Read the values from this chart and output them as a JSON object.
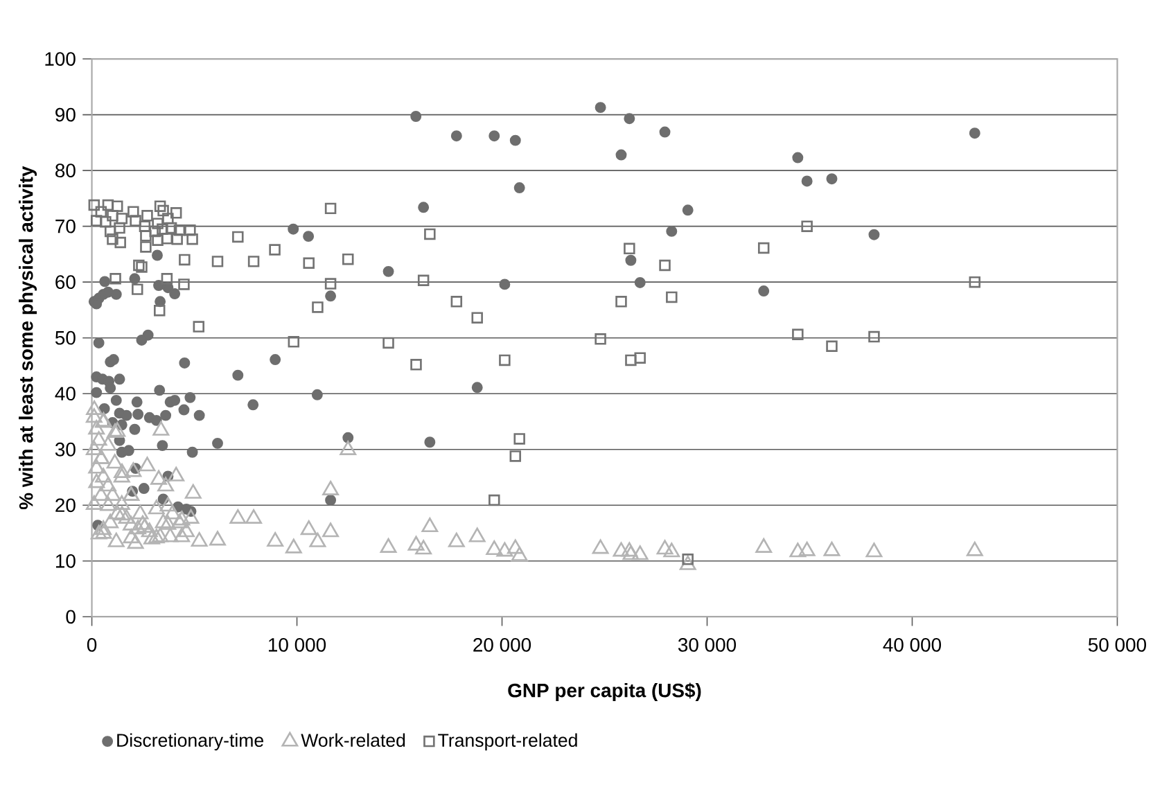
{
  "chart_data": {
    "type": "scatter",
    "xlabel": "GNP per capita (US$)",
    "ylabel": "% with at least some physical activity",
    "xlim": [
      0,
      50000
    ],
    "ylim": [
      0,
      100
    ],
    "xticks": [
      0,
      {
        "value": 10000,
        "label": "10 000"
      },
      {
        "value": 20000,
        "label": "20 000"
      },
      {
        "value": 30000,
        "label": "30 000"
      },
      {
        "value": 40000,
        "label": "40 000"
      },
      {
        "value": 50000,
        "label": "50 000"
      }
    ],
    "yticks": [
      0,
      10,
      20,
      30,
      40,
      50,
      60,
      70,
      80,
      90,
      100
    ],
    "grid": "y",
    "legend": "bottom",
    "series": [
      {
        "name": "Discretionary-time",
        "color": "#6e6e6e",
        "marker": "circle",
        "x": [
          15800,
          17780,
          19620,
          20650,
          20850,
          16170,
          24800,
          26210,
          27940,
          25810,
          29060,
          28270,
          26280,
          26730,
          20130,
          14460,
          18790,
          12490,
          16480,
          11640,
          11640,
          43050,
          34420,
          34870,
          36080,
          38140,
          32760,
          9820,
          10560,
          3190,
          2090,
          3260,
          3710,
          4040,
          630,
          1190,
          110,
          340,
          560,
          790,
          225,
          3330,
          340,
          2430,
          2740,
          900,
          1060,
          225,
          520,
          830,
          1350,
          900,
          225,
          4520,
          8940,
          7120,
          10990,
          7860,
          3300,
          3820,
          4040,
          4790,
          1190,
          2200,
          610,
          1350,
          1690,
          2250,
          2810,
          3150,
          3600,
          4490,
          5240,
          1010,
          1460,
          2090,
          6130,
          3440,
          4900,
          1350,
          1460,
          1800,
          2130,
          3710,
          1980,
          2540,
          3480,
          4200,
          4610,
          4830,
          290
        ],
        "values": [
          89.7,
          86.2,
          86.2,
          85.4,
          76.9,
          73.4,
          91.3,
          89.3,
          86.9,
          82.8,
          72.9,
          69.1,
          63.9,
          59.9,
          59.6,
          61.9,
          41.1,
          32.1,
          31.3,
          57.5,
          20.9,
          86.7,
          82.3,
          78.1,
          78.5,
          68.5,
          58.4,
          69.5,
          68.2,
          64.8,
          60.6,
          59.4,
          59.0,
          57.9,
          60.1,
          57.8,
          56.5,
          57.1,
          57.8,
          58.2,
          56.1,
          56.5,
          49.1,
          49.6,
          50.5,
          45.7,
          46.1,
          43.0,
          42.6,
          42.2,
          42.6,
          41.0,
          40.2,
          45.5,
          46.1,
          43.3,
          39.8,
          38.0,
          40.6,
          38.5,
          38.8,
          39.3,
          38.8,
          38.5,
          37.3,
          36.5,
          36.1,
          36.3,
          35.7,
          35.2,
          36.1,
          37.1,
          36.1,
          34.8,
          34.4,
          33.6,
          31.1,
          30.7,
          29.5,
          31.6,
          29.5,
          29.8,
          26.6,
          25.2,
          22.5,
          23.0,
          21.1,
          19.7,
          19.3,
          18.9,
          16.4
        ]
      },
      {
        "name": "Work-related",
        "color": "#b4b4b4",
        "marker": "triangle",
        "x": [
          12490,
          11640,
          11640,
          14460,
          15810,
          16170,
          16480,
          17780,
          18790,
          19620,
          20130,
          20650,
          20850,
          24800,
          25810,
          26210,
          26280,
          26730,
          27940,
          28270,
          29060,
          32760,
          34420,
          34870,
          36080,
          38140,
          43050,
          3370,
          2700,
          4110,
          4940,
          2020,
          3260,
          3600,
          7120,
          7890,
          8940,
          9840,
          10580,
          11010,
          6130,
          5240,
          4830,
          4610,
          4380,
          3820,
          3330,
          2920,
          2130,
          1190,
          340,
          110,
          110,
          225,
          340,
          110,
          450,
          225,
          560,
          790,
          1010,
          450,
          1460,
          1240,
          1690,
          1910,
          900,
          560,
          2360,
          2580,
          2810,
          3480,
          3930,
          4270,
          3150,
          1910,
          1460,
          1120,
          790,
          560,
          1240,
          120,
          570,
          1130,
          460,
          1470,
          1920,
          2480,
          3710,
          4390,
          3150,
          1920,
          570,
          230,
          800,
          1470,
          2250,
          3710
        ],
        "values": [
          29.9,
          22.7,
          15.2,
          12.4,
          12.8,
          12.1,
          16.1,
          13.4,
          14.3,
          12.0,
          11.7,
          12.2,
          10.9,
          12.2,
          11.7,
          11.7,
          11.1,
          11.1,
          12.1,
          11.6,
          9.3,
          12.4,
          11.6,
          11.8,
          11.8,
          11.6,
          11.8,
          33.4,
          27.0,
          25.2,
          22.1,
          26.0,
          24.6,
          23.4,
          17.6,
          17.6,
          13.5,
          12.3,
          15.6,
          13.4,
          13.7,
          13.5,
          17.6,
          15.2,
          14.3,
          14.3,
          14.3,
          13.9,
          13.1,
          13.4,
          14.8,
          20.1,
          35.7,
          33.6,
          31.6,
          29.9,
          28.3,
          26.6,
          25.0,
          23.4,
          21.7,
          21.7,
          20.1,
          18.4,
          17.6,
          16.4,
          16.8,
          15.6,
          18.4,
          16.0,
          15.2,
          16.8,
          18.4,
          16.8,
          19.3,
          21.7,
          25.0,
          27.5,
          30.7,
          34.8,
          33.2,
          37.1,
          35.0,
          33.0,
          28.3,
          25.8,
          21.7,
          16.5,
          16.5,
          17.3,
          14.1,
          14.1,
          14.9,
          24.0,
          19.9,
          18.2,
          15.7,
          19.8
        ]
      },
      {
        "name": "Transport-related",
        "color": "#737373",
        "marker": "square",
        "x": [
          11640,
          16480,
          12490,
          16170,
          11640,
          17780,
          18790,
          14460,
          15810,
          20130,
          20850,
          20650,
          19620,
          24800,
          26210,
          25810,
          26280,
          26730,
          27940,
          28270,
          29060,
          34870,
          32760,
          43050,
          34420,
          36080,
          38140,
          110,
          790,
          1240,
          450,
          1010,
          1460,
          225,
          670,
          2020,
          2130,
          2700,
          3330,
          3480,
          3710,
          4110,
          900,
          1350,
          2580,
          3210,
          3080,
          1010,
          1390,
          2630,
          3440,
          3870,
          4270,
          4790,
          3210,
          3660,
          4160,
          4900,
          2630,
          4520,
          6130,
          7890,
          8920,
          10580,
          7120,
          2290,
          2430,
          1150,
          3660,
          4490,
          2220,
          3300,
          5210,
          9840,
          11010
        ],
        "values": [
          73.2,
          68.6,
          64.1,
          60.3,
          59.7,
          56.5,
          53.6,
          49.1,
          45.2,
          46.0,
          31.9,
          28.8,
          20.9,
          49.8,
          66.0,
          56.5,
          46.0,
          46.4,
          63.0,
          57.3,
          10.3,
          70.0,
          66.1,
          60.0,
          50.6,
          48.5,
          50.2,
          73.8,
          73.8,
          73.6,
          72.6,
          71.9,
          71.4,
          71.0,
          70.8,
          72.6,
          71.0,
          71.9,
          73.6,
          72.8,
          71.4,
          72.4,
          69.1,
          69.7,
          70.0,
          70.5,
          69.1,
          67.7,
          67.1,
          68.3,
          69.5,
          69.7,
          69.3,
          69.3,
          67.5,
          67.8,
          67.7,
          67.7,
          66.3,
          64.0,
          63.7,
          63.7,
          65.8,
          63.4,
          68.1,
          63.0,
          62.7,
          60.6,
          60.6,
          59.6,
          58.7,
          54.9,
          52.0,
          49.3,
          55.5
        ]
      }
    ]
  }
}
